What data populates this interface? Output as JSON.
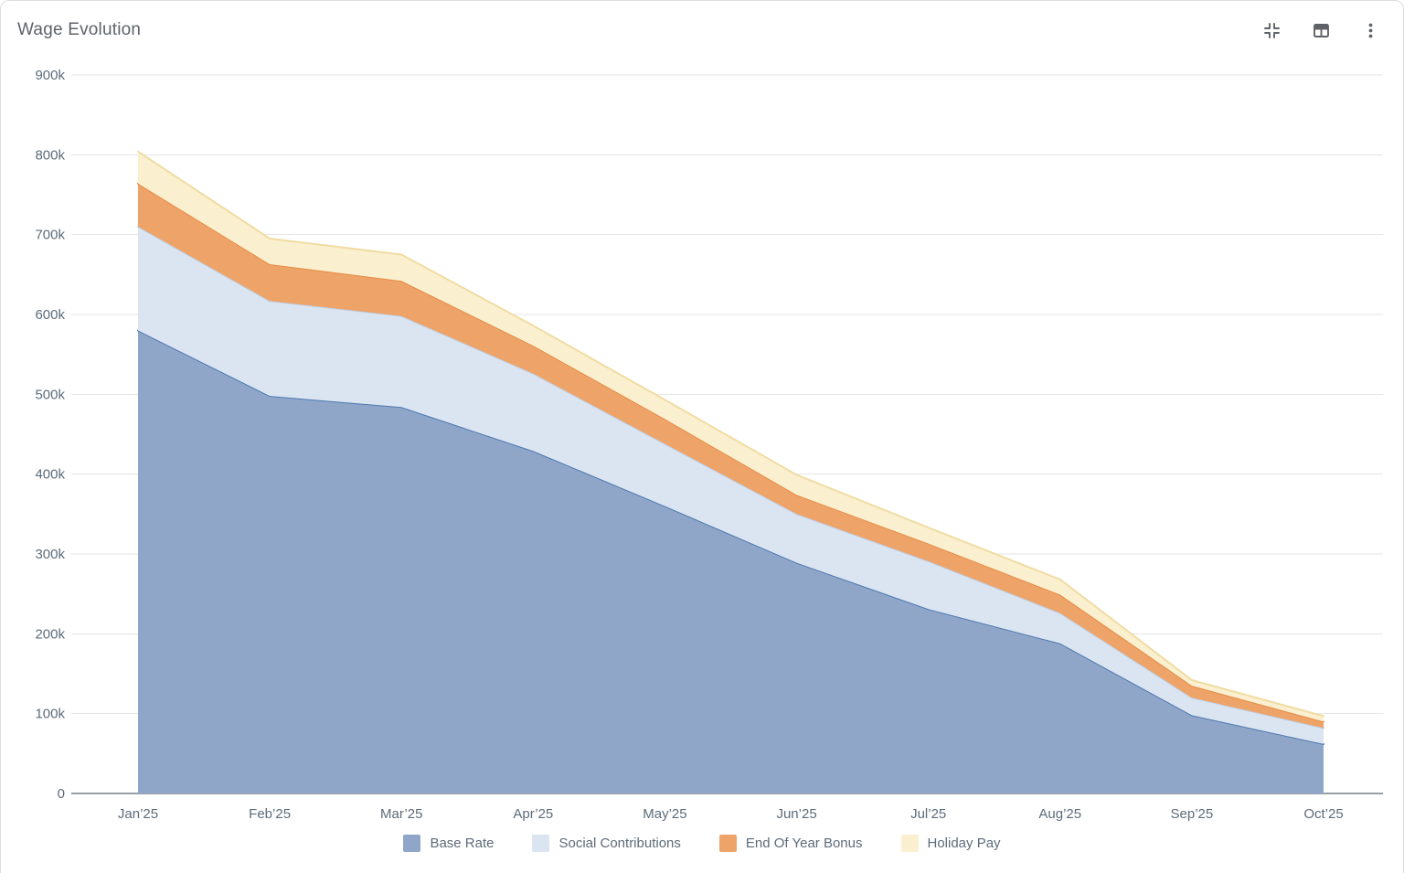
{
  "card": {
    "title": "Wage Evolution",
    "toolbar": {
      "collapse_icon": "collapse-icon",
      "table_icon": "table-icon",
      "menu_icon": "kebab-menu-icon"
    }
  },
  "colors": {
    "grid_line": "#e6e6e6",
    "axis_line": "#98a0a6",
    "axis_text": "#5d6b79",
    "title_text": "#5f6368",
    "icon": "#5f6368"
  },
  "chart_data": {
    "type": "area",
    "stacked": true,
    "title": "Wage Evolution",
    "xlabel": "",
    "ylabel": "",
    "grid": true,
    "legend_position": "bottom",
    "ylim": [
      0,
      900000
    ],
    "ytick_step": 100000,
    "ytick_labels": [
      "0",
      "100k",
      "200k",
      "300k",
      "400k",
      "500k",
      "600k",
      "700k",
      "800k",
      "900k"
    ],
    "categories": [
      "Jan’25",
      "Feb’25",
      "Mar’25",
      "Apr’25",
      "May’25",
      "Jun’25",
      "Jul’25",
      "Aug’25",
      "Sep’25",
      "Oct’25"
    ],
    "series": [
      {
        "name": "Base Rate",
        "fill": "#8fa6c9",
        "line": "#4d78b0",
        "values": [
          580000,
          498000,
          484000,
          429000,
          360000,
          289000,
          231000,
          188000,
          98000,
          62000
        ]
      },
      {
        "name": "Social Contributions",
        "fill": "#dbe5f1",
        "line": "#bcd0e7",
        "values": [
          130000,
          119000,
          114000,
          97000,
          78000,
          61000,
          60000,
          38000,
          22000,
          20000
        ]
      },
      {
        "name": "End Of Year Bonus",
        "fill": "#eea369",
        "line": "#e68c45",
        "values": [
          54000,
          46000,
          44000,
          35000,
          31000,
          24000,
          22000,
          23000,
          15000,
          8000
        ]
      },
      {
        "name": "Holiday Pay",
        "fill": "#faf0cf",
        "line": "#f0dca2",
        "values": [
          40000,
          32000,
          33000,
          25000,
          24000,
          25000,
          20000,
          19000,
          7000,
          7000
        ]
      }
    ],
    "stacked_totals": [
      804000,
      695000,
      675000,
      586000,
      493000,
      399000,
      333000,
      268000,
      142000,
      97000
    ]
  }
}
